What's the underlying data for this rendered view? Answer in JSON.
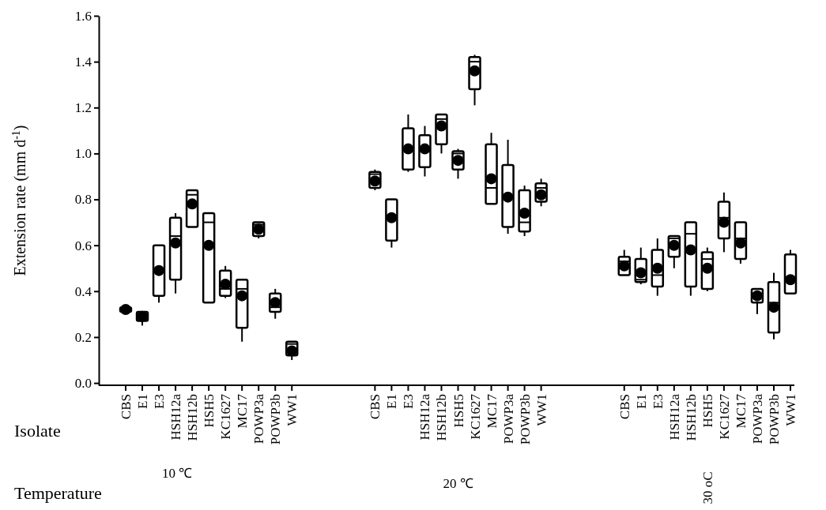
{
  "chart_data": {
    "type": "box",
    "ylabel": "Extension rate (mm d$^{-1}$)",
    "categories": [
      "CBS",
      "E1",
      "E3",
      "HSH12a",
      "HSH12b",
      "HSH5",
      "KC1627",
      "MC17",
      "POWP3a",
      "POWP3b",
      "WW1",
      null,
      null,
      null,
      null,
      "CBS",
      "E1",
      "E3",
      "HSH12a",
      "HSH12b",
      "HSH5",
      "KC1627",
      "MC17",
      "POWP3a",
      "POWP3b",
      "WW1",
      null,
      null,
      null,
      null,
      "CBS",
      "E1",
      "E3",
      "HSH12a",
      "HSH12b",
      "HSH5",
      "KC1627",
      "MC17",
      "POWP3a",
      "POWP3b",
      "WW1"
    ],
    "boxes": [
      {
        "low": 0.3,
        "q1": 0.31,
        "median": 0.32,
        "q3": 0.33,
        "high": 0.33,
        "mean": 0.32
      },
      {
        "low": 0.25,
        "q1": 0.27,
        "median": 0.28,
        "q3": 0.31,
        "high": 0.31,
        "mean": 0.29
      },
      {
        "low": 0.35,
        "q1": 0.38,
        "median": 0.49,
        "q3": 0.6,
        "high": 0.6,
        "mean": 0.49
      },
      {
        "low": 0.39,
        "q1": 0.45,
        "median": 0.64,
        "q3": 0.72,
        "high": 0.74,
        "mean": 0.61
      },
      {
        "low": 0.68,
        "q1": 0.68,
        "median": 0.82,
        "q3": 0.84,
        "high": 0.84,
        "mean": 0.78
      },
      {
        "low": 0.35,
        "q1": 0.35,
        "median": 0.7,
        "q3": 0.74,
        "high": 0.74,
        "mean": 0.6
      },
      {
        "low": 0.37,
        "q1": 0.38,
        "median": 0.41,
        "q3": 0.49,
        "high": 0.51,
        "mean": 0.43
      },
      {
        "low": 0.18,
        "q1": 0.24,
        "median": 0.41,
        "q3": 0.45,
        "high": 0.45,
        "mean": 0.38
      },
      {
        "low": 0.63,
        "q1": 0.64,
        "median": 0.69,
        "q3": 0.7,
        "high": 0.7,
        "mean": 0.67
      },
      {
        "low": 0.28,
        "q1": 0.31,
        "median": 0.33,
        "q3": 0.39,
        "high": 0.41,
        "mean": 0.35
      },
      {
        "low": 0.1,
        "q1": 0.12,
        "median": 0.17,
        "q3": 0.18,
        "high": 0.18,
        "mean": 0.14
      },
      null,
      null,
      null,
      null,
      {
        "low": 0.84,
        "q1": 0.85,
        "median": 0.91,
        "q3": 0.92,
        "high": 0.93,
        "mean": 0.88
      },
      {
        "low": 0.59,
        "q1": 0.62,
        "median": 0.72,
        "q3": 0.8,
        "high": 0.8,
        "mean": 0.72
      },
      {
        "low": 0.92,
        "q1": 0.93,
        "median": 1.02,
        "q3": 1.11,
        "high": 1.17,
        "mean": 1.02
      },
      {
        "low": 0.9,
        "q1": 0.94,
        "median": 1.01,
        "q3": 1.08,
        "high": 1.12,
        "mean": 1.02
      },
      {
        "low": 1.0,
        "q1": 1.04,
        "median": 1.15,
        "q3": 1.17,
        "high": 1.17,
        "mean": 1.12
      },
      {
        "low": 0.89,
        "q1": 0.93,
        "median": 1.0,
        "q3": 1.01,
        "high": 1.02,
        "mean": 0.97
      },
      {
        "low": 1.21,
        "q1": 1.28,
        "median": 1.4,
        "q3": 1.42,
        "high": 1.43,
        "mean": 1.36
      },
      {
        "low": 0.78,
        "q1": 0.78,
        "median": 0.85,
        "q3": 1.04,
        "high": 1.09,
        "mean": 0.89
      },
      {
        "low": 0.65,
        "q1": 0.68,
        "median": 0.81,
        "q3": 0.95,
        "high": 1.06,
        "mean": 0.81
      },
      {
        "low": 0.64,
        "q1": 0.66,
        "median": 0.7,
        "q3": 0.84,
        "high": 0.86,
        "mean": 0.74
      },
      {
        "low": 0.77,
        "q1": 0.79,
        "median": 0.85,
        "q3": 0.87,
        "high": 0.89,
        "mean": 0.82
      },
      null,
      null,
      null,
      null,
      {
        "low": 0.47,
        "q1": 0.47,
        "median": 0.53,
        "q3": 0.55,
        "high": 0.58,
        "mean": 0.51
      },
      {
        "low": 0.43,
        "q1": 0.44,
        "median": 0.45,
        "q3": 0.54,
        "high": 0.59,
        "mean": 0.48
      },
      {
        "low": 0.38,
        "q1": 0.42,
        "median": 0.47,
        "q3": 0.58,
        "high": 0.63,
        "mean": 0.5
      },
      {
        "low": 0.5,
        "q1": 0.55,
        "median": 0.63,
        "q3": 0.64,
        "high": 0.64,
        "mean": 0.6
      },
      {
        "low": 0.38,
        "q1": 0.42,
        "median": 0.65,
        "q3": 0.7,
        "high": 0.7,
        "mean": 0.58
      },
      {
        "low": 0.4,
        "q1": 0.41,
        "median": 0.54,
        "q3": 0.57,
        "high": 0.59,
        "mean": 0.5
      },
      {
        "low": 0.57,
        "q1": 0.63,
        "median": 0.72,
        "q3": 0.79,
        "high": 0.83,
        "mean": 0.7
      },
      {
        "low": 0.52,
        "q1": 0.54,
        "median": 0.63,
        "q3": 0.7,
        "high": 0.7,
        "mean": 0.61
      },
      {
        "low": 0.3,
        "q1": 0.35,
        "median": 0.39,
        "q3": 0.41,
        "high": 0.41,
        "mean": 0.38
      },
      {
        "low": 0.19,
        "q1": 0.22,
        "median": 0.35,
        "q3": 0.44,
        "high": 0.48,
        "mean": 0.33
      },
      {
        "low": 0.39,
        "q1": 0.39,
        "median": 0.46,
        "q3": 0.56,
        "high": 0.58,
        "mean": 0.45
      }
    ],
    "ylim": [
      -0.01,
      1.6
    ],
    "yticks": [
      {
        "value": 0,
        "label": "0.0"
      },
      {
        "value": 0.2,
        "label": "0.2"
      },
      {
        "value": 0.4,
        "label": "0.4"
      },
      {
        "value": 0.6,
        "label": "0.6"
      },
      {
        "value": 0.8,
        "label": "0.8"
      },
      {
        "value": 1,
        "label": "1.0"
      },
      {
        "value": 1.2,
        "label": "1.2"
      },
      {
        "value": 1.4,
        "label": "1.4"
      },
      {
        "value": 1.6,
        "label": "1.6"
      }
    ],
    "annotations": [
      "Isolate",
      "Temperature",
      "10 ℃",
      "20 ℃",
      "30 oC"
    ]
  }
}
